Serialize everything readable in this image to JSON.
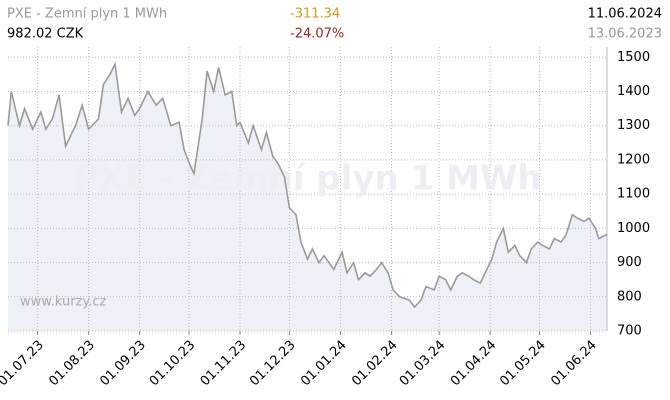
{
  "header": {
    "last_price": "982.02 CZK",
    "change": "-311.34",
    "change_pct": "-24.07%",
    "date_to": "11.06.2024",
    "date_from": "13.06.2023"
  },
  "chart_data": {
    "type": "area",
    "title": "PXE - Zemní plyn 1 MWh",
    "source": "www.kurzy.cz",
    "color": "#9a9a9a",
    "fill": "#eef0f8",
    "grid": true,
    "xlim": [
      "2023-06-13",
      "2024-06-11"
    ],
    "ylim": [
      700,
      1530
    ],
    "yticks": [
      700,
      800,
      900,
      1000,
      1100,
      1200,
      1300,
      1400,
      1500
    ],
    "xticks": [
      {
        "value": "2023-07-01",
        "label": "01.07.23"
      },
      {
        "value": "2023-08-01",
        "label": "01.08.23"
      },
      {
        "value": "2023-09-01",
        "label": "01.09.23"
      },
      {
        "value": "2023-10-01",
        "label": "01.10.23"
      },
      {
        "value": "2023-11-01",
        "label": "01.11.23"
      },
      {
        "value": "2023-12-01",
        "label": "01.12.23"
      },
      {
        "value": "2024-01-01",
        "label": "01.01.24"
      },
      {
        "value": "2024-02-01",
        "label": "01.02.24"
      },
      {
        "value": "2024-03-01",
        "label": "01.03.24"
      },
      {
        "value": "2024-04-01",
        "label": "01.04.24"
      },
      {
        "value": "2024-05-01",
        "label": "01.05.24"
      },
      {
        "value": "2024-06-01",
        "label": "01.06.24"
      }
    ],
    "x": [
      "2023-06-13",
      "2023-06-15",
      "2023-06-20",
      "2023-06-23",
      "2023-06-28",
      "2023-07-03",
      "2023-07-06",
      "2023-07-10",
      "2023-07-14",
      "2023-07-18",
      "2023-07-24",
      "2023-07-28",
      "2023-08-01",
      "2023-08-07",
      "2023-08-10",
      "2023-08-14",
      "2023-08-17",
      "2023-08-21",
      "2023-08-25",
      "2023-08-29",
      "2023-09-01",
      "2023-09-06",
      "2023-09-11",
      "2023-09-15",
      "2023-09-20",
      "2023-09-25",
      "2023-09-28",
      "2023-10-02",
      "2023-10-04",
      "2023-10-09",
      "2023-10-12",
      "2023-10-16",
      "2023-10-19",
      "2023-10-23",
      "2023-10-27",
      "2023-10-30",
      "2023-11-01",
      "2023-11-06",
      "2023-11-09",
      "2023-11-14",
      "2023-11-17",
      "2023-11-21",
      "2023-11-24",
      "2023-11-28",
      "2023-12-01",
      "2023-12-05",
      "2023-12-08",
      "2023-12-12",
      "2023-12-15",
      "2023-12-19",
      "2023-12-22",
      "2023-12-28",
      "2024-01-02",
      "2024-01-05",
      "2024-01-09",
      "2024-01-12",
      "2024-01-16",
      "2024-01-19",
      "2024-01-23",
      "2024-01-26",
      "2024-01-30",
      "2024-02-02",
      "2024-02-06",
      "2024-02-12",
      "2024-02-15",
      "2024-02-19",
      "2024-02-22",
      "2024-02-27",
      "2024-03-01",
      "2024-03-05",
      "2024-03-08",
      "2024-03-12",
      "2024-03-15",
      "2024-03-19",
      "2024-03-22",
      "2024-03-26",
      "2024-03-29",
      "2024-04-02",
      "2024-04-05",
      "2024-04-09",
      "2024-04-12",
      "2024-04-16",
      "2024-04-19",
      "2024-04-23",
      "2024-04-26",
      "2024-04-30",
      "2024-05-03",
      "2024-05-07",
      "2024-05-10",
      "2024-05-14",
      "2024-05-17",
      "2024-05-21",
      "2024-05-24",
      "2024-05-28",
      "2024-05-31",
      "2024-06-04",
      "2024-06-06",
      "2024-06-11"
    ],
    "values": [
      1300,
      1400,
      1300,
      1350,
      1290,
      1340,
      1290,
      1320,
      1390,
      1240,
      1300,
      1360,
      1290,
      1320,
      1420,
      1450,
      1480,
      1340,
      1380,
      1330,
      1350,
      1400,
      1360,
      1380,
      1300,
      1310,
      1230,
      1180,
      1160,
      1320,
      1460,
      1400,
      1470,
      1390,
      1400,
      1300,
      1310,
      1250,
      1300,
      1230,
      1280,
      1210,
      1190,
      1150,
      1060,
      1040,
      960,
      910,
      940,
      900,
      920,
      880,
      930,
      870,
      900,
      850,
      870,
      860,
      880,
      900,
      870,
      820,
      800,
      790,
      770,
      790,
      830,
      820,
      860,
      850,
      820,
      860,
      870,
      860,
      850,
      840,
      870,
      910,
      960,
      1000,
      930,
      950,
      920,
      900,
      940,
      960,
      950,
      940,
      970,
      960,
      980,
      1040,
      1030,
      1020,
      1030,
      1000,
      970,
      982.02
    ]
  }
}
